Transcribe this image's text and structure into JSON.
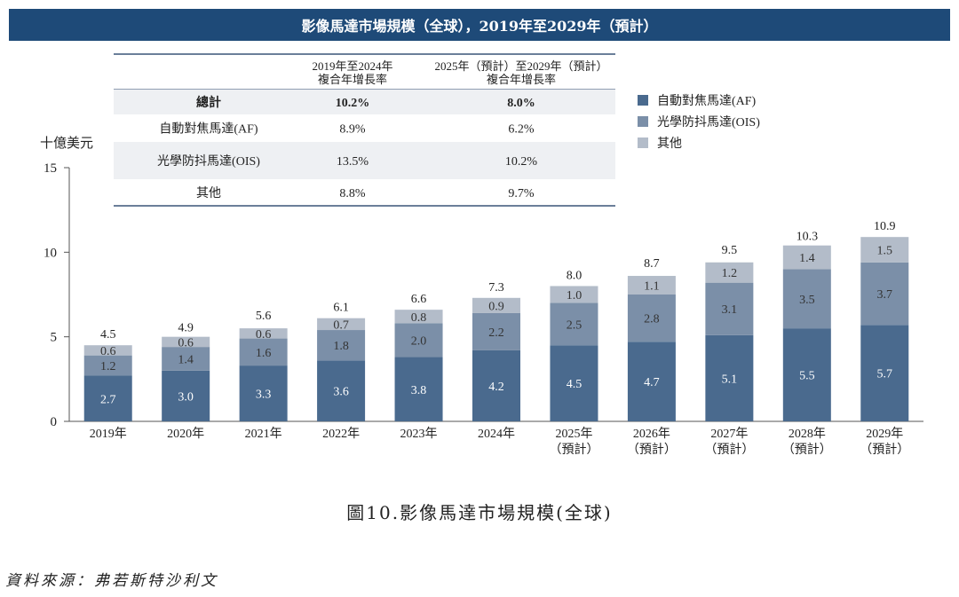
{
  "banner_title": "影像馬達市場規模（全球），2019年至2029年（預計）",
  "caption": "圖10.影像馬達市場規模(全球)",
  "source": "資料來源：弗若斯特沙利文",
  "colors": {
    "af": "#4a6a8e",
    "ois": "#7b8fa8",
    "other": "#b3bcc9",
    "banner": "#1e4a78",
    "table_stripe": "#eef0f3"
  },
  "cagr_table": {
    "headers": [
      [
        "2019年至2024年",
        "複合年增長率"
      ],
      [
        "2025年（預計）至2029年（預計）",
        "複合年增長率"
      ]
    ],
    "rows": [
      {
        "label": "總計",
        "cagr_2019_2024": "10.2%",
        "cagr_2025_2029": "8.0%",
        "bold": true
      },
      {
        "label": "自動對焦馬達(AF)",
        "cagr_2019_2024": "8.9%",
        "cagr_2025_2029": "6.2%"
      },
      {
        "label": "光學防抖馬達(OIS)",
        "cagr_2019_2024": "13.5%",
        "cagr_2025_2029": "10.2%"
      },
      {
        "label": "其他",
        "cagr_2019_2024": "8.8%",
        "cagr_2025_2029": "9.7%"
      }
    ]
  },
  "chart_data": {
    "type": "bar",
    "stacked": true,
    "title": "影像馬達市場規模（全球），2019年至2029年（預計）",
    "ylabel": "十億美元",
    "ylim": [
      0,
      15
    ],
    "yticks": [
      0,
      5,
      10,
      15
    ],
    "categories": [
      [
        "2019年"
      ],
      [
        "2020年"
      ],
      [
        "2021年"
      ],
      [
        "2022年"
      ],
      [
        "2023年"
      ],
      [
        "2024年"
      ],
      [
        "2025年",
        "（預計）"
      ],
      [
        "2026年",
        "（預計）"
      ],
      [
        "2027年",
        "（預計）"
      ],
      [
        "2028年",
        "（預計）"
      ],
      [
        "2029年",
        "（預計）"
      ]
    ],
    "series": [
      {
        "name": "自動對焦馬達(AF)",
        "key": "af",
        "values": [
          2.7,
          3.0,
          3.3,
          3.6,
          3.8,
          4.2,
          4.5,
          4.7,
          5.1,
          5.5,
          5.7
        ]
      },
      {
        "name": "光學防抖馬達(OIS)",
        "key": "ois",
        "values": [
          1.2,
          1.4,
          1.6,
          1.8,
          2.0,
          2.2,
          2.5,
          2.8,
          3.1,
          3.5,
          3.7
        ]
      },
      {
        "name": "其他",
        "key": "other",
        "values": [
          0.6,
          0.6,
          0.6,
          0.7,
          0.8,
          0.9,
          1.0,
          1.1,
          1.2,
          1.4,
          1.5
        ]
      }
    ],
    "totals": [
      4.5,
      4.9,
      5.6,
      6.1,
      6.6,
      7.3,
      8.0,
      8.7,
      9.5,
      10.3,
      10.9
    ],
    "legend_position": "top-right"
  }
}
